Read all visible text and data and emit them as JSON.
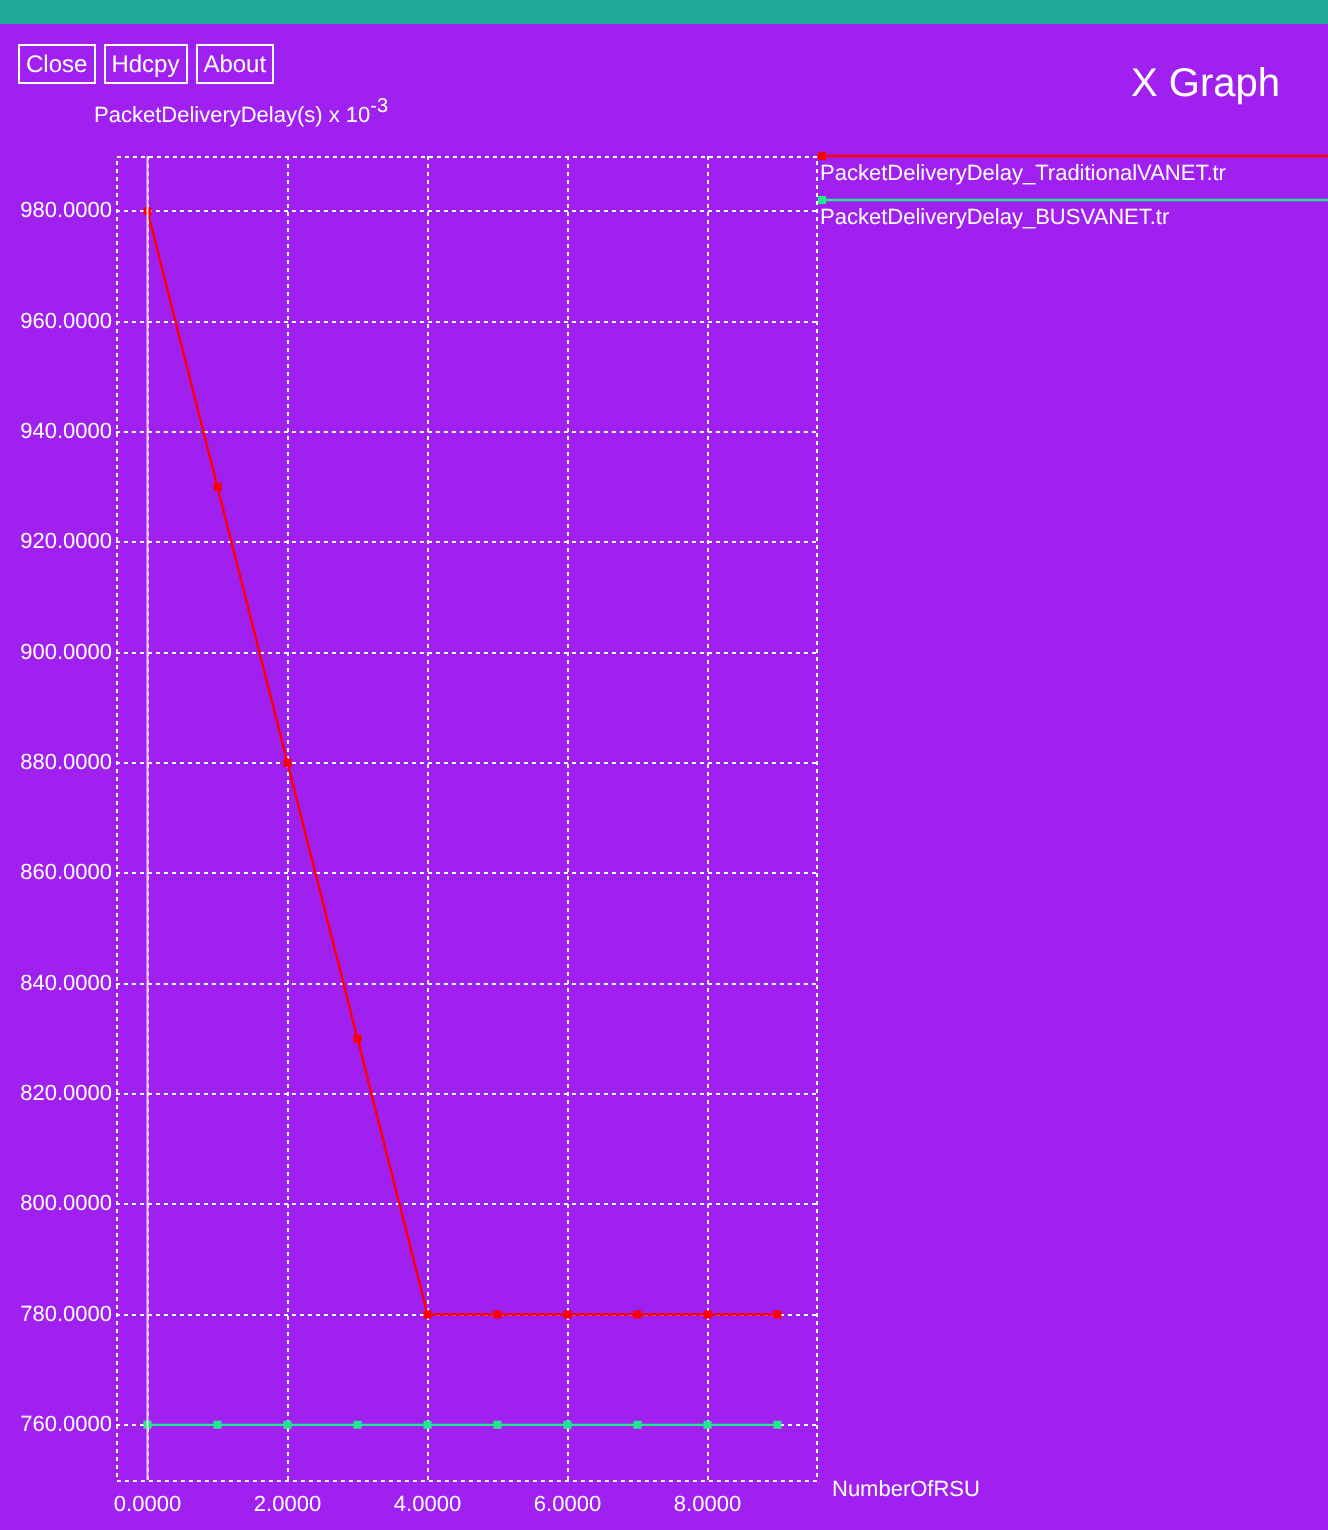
{
  "chart_data": {
    "type": "line",
    "title": "X Graph",
    "xlabel": "NumberOfRSU",
    "ylabel": "PacketDeliveryDelay(s) x 10$^{-3}$",
    "annotations": [
      "Close",
      "Hdcpy",
      "About"
    ],
    "x": [
      0,
      1,
      2,
      3,
      4,
      5,
      6,
      7,
      8,
      9
    ],
    "series": [
      {
        "name": "PacketDeliveryDelay_TraditionalVANET.tr",
        "color": "#ff0000",
        "values": [
          980,
          930,
          880,
          830,
          780,
          780,
          780,
          780,
          780,
          780
        ]
      },
      {
        "name": "PacketDeliveryDelay_BUSVANET.tr",
        "color": "#20e890",
        "values": [
          760,
          760,
          760,
          760,
          760,
          760,
          760,
          760,
          760,
          760
        ]
      }
    ],
    "xlim": [
      -0.45,
      9.55
    ],
    "xticks": [
      {
        "value": 0,
        "label": "0.0000"
      },
      {
        "value": 2,
        "label": "2.0000"
      },
      {
        "value": 4,
        "label": "4.0000"
      },
      {
        "value": 6,
        "label": "6.0000"
      },
      {
        "value": 8,
        "label": "8.0000"
      }
    ],
    "ylim": [
      750,
      990
    ],
    "yticks": [
      {
        "value": 760,
        "label": "760.0000"
      },
      {
        "value": 780,
        "label": "780.0000"
      },
      {
        "value": 800,
        "label": "800.0000"
      },
      {
        "value": 820,
        "label": "820.0000"
      },
      {
        "value": 840,
        "label": "840.0000"
      },
      {
        "value": 860,
        "label": "860.0000"
      },
      {
        "value": 880,
        "label": "880.0000"
      },
      {
        "value": 900,
        "label": "900.0000"
      },
      {
        "value": 920,
        "label": "920.0000"
      },
      {
        "value": 940,
        "label": "940.0000"
      },
      {
        "value": 960,
        "label": "960.0000"
      },
      {
        "value": 980,
        "label": "980.0000"
      }
    ],
    "ref_lines": [
      {
        "axis": "x",
        "value": 0,
        "color": "#f0d0f0"
      }
    ],
    "grid": true,
    "legend": "top right",
    "marker": "square",
    "line_style": "solid"
  }
}
